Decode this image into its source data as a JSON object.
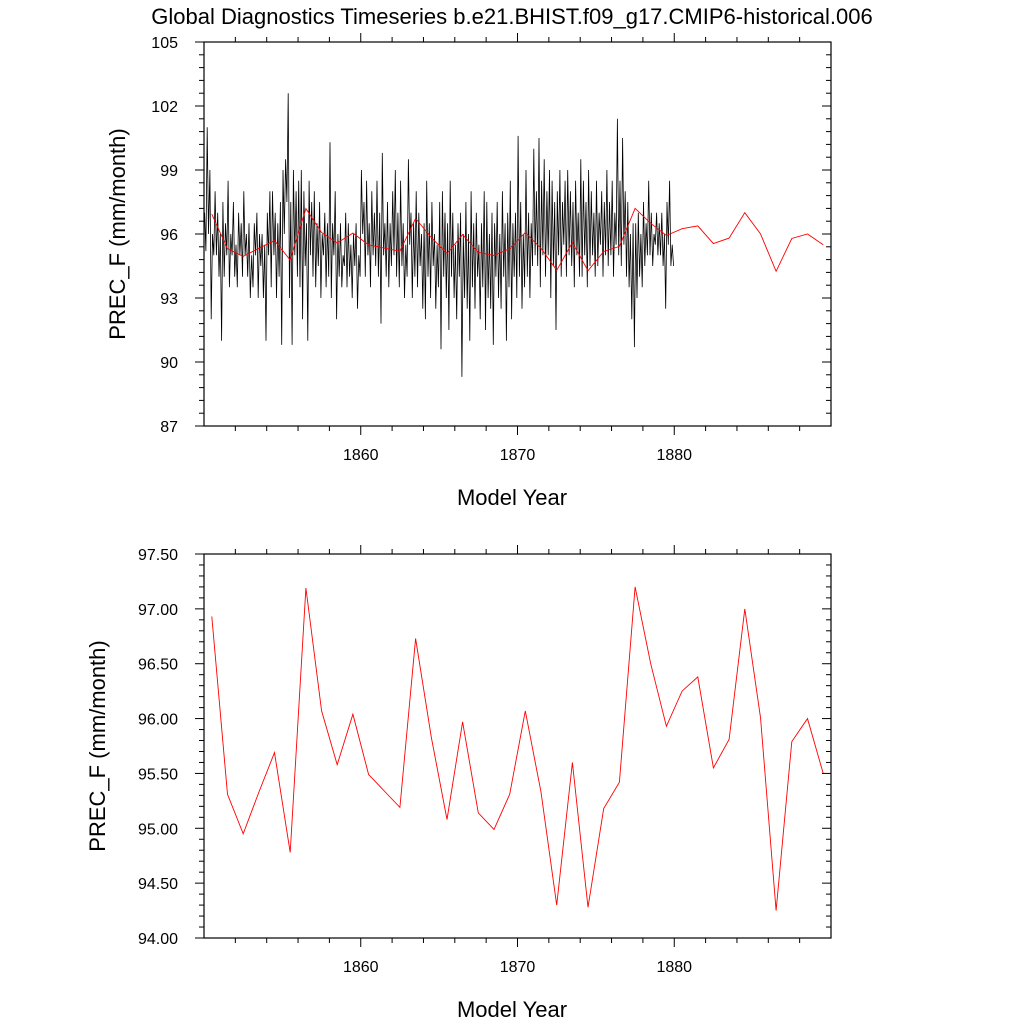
{
  "title": "Global Diagnostics Timeseries b.e21.BHIST.f09_g17.CMIP6-historical.006",
  "colors": {
    "monthly_line": "#000000",
    "annual_line": "#ff0000",
    "frame": "#000000"
  },
  "chart_data": [
    {
      "type": "line",
      "title": "Global Diagnostics Timeseries b.e21.BHIST.f09_g17.CMIP6-historical.006",
      "xlabel": "Model Year",
      "ylabel": "PREC_F (mm/month)",
      "xlim": [
        1850,
        1890
      ],
      "ylim": [
        87,
        105
      ],
      "x_ticks": [
        1860,
        1870,
        1880
      ],
      "x_tick_labels": [
        "1860",
        "1870",
        "1880"
      ],
      "y_ticks": [
        87,
        90,
        93,
        96,
        99,
        102,
        105
      ],
      "y_tick_labels": [
        "87",
        "90",
        "93",
        "96",
        "99",
        "102",
        "105"
      ],
      "series": [
        {
          "name": "monthly",
          "color": "#000000",
          "x_start": 1850.04,
          "x_step": 0.08333,
          "values": [
            97.0,
            95.2,
            101.0,
            96.0,
            99.0,
            92.0,
            96.0,
            95.0,
            98.0,
            95.0,
            97.0,
            94.0,
            96.0,
            91.0,
            97.5,
            94.0,
            96.5,
            95.0,
            98.5,
            93.5,
            96.0,
            95.0,
            97.5,
            94.0,
            95.5,
            93.5,
            97.0,
            95.0,
            96.5,
            94.0,
            98.0,
            95.0,
            96.0,
            94.0,
            96.5,
            93.0,
            95.0,
            93.5,
            96.5,
            95.0,
            97.0,
            93.0,
            96.0,
            94.5,
            96.0,
            93.0,
            95.5,
            91.0,
            97.0,
            95.0,
            98.0,
            93.5,
            98.0,
            95.0,
            97.0,
            93.0,
            96.5,
            94.0,
            97.5,
            90.8,
            99.0,
            96.0,
            99.5,
            97.5,
            102.6,
            93.0,
            97.5,
            90.8,
            99.0,
            95.0,
            98.0,
            94.0,
            98.5,
            93.5,
            99.0,
            92.0,
            98.0,
            94.5,
            96.5,
            91.0,
            98.5,
            95.0,
            97.5,
            94.0,
            98.0,
            93.5,
            96.5,
            94.5,
            97.5,
            93.0,
            96.0,
            95.0,
            97.0,
            93.5,
            96.5,
            94.0,
            100.3,
            93.0,
            96.5,
            95.0,
            98.0,
            92.0,
            96.0,
            94.0,
            96.5,
            93.5,
            95.0,
            94.5,
            97.0,
            93.5,
            96.5,
            94.0,
            95.5,
            93.0,
            96.0,
            94.5,
            96.5,
            92.5,
            95.0,
            94.0,
            99.0,
            96.0,
            97.5,
            94.0,
            98.5,
            95.0,
            96.5,
            93.5,
            98.0,
            95.0,
            97.0,
            94.5,
            98.5,
            94.0,
            97.0,
            91.8,
            99.8,
            95.0,
            96.5,
            94.0,
            97.5,
            93.5,
            96.5,
            94.5,
            98.0,
            95.0,
            99.0,
            94.0,
            97.0,
            93.5,
            98.5,
            94.5,
            96.5,
            93.0,
            95.5,
            94.0,
            99.5,
            95.5,
            97.0,
            93.0,
            96.5,
            94.0,
            98.0,
            93.5,
            97.0,
            94.5,
            96.0,
            92.5,
            96.5,
            92.0,
            98.5,
            94.0,
            96.5,
            93.0,
            97.5,
            94.5,
            96.0,
            92.5,
            95.5,
            93.5,
            97.5,
            90.6,
            98.0,
            94.0,
            97.0,
            93.0,
            96.5,
            91.5,
            98.5,
            94.0,
            97.0,
            93.0,
            95.5,
            92.0,
            96.5,
            94.0,
            97.0,
            89.3,
            96.0,
            93.0,
            97.5,
            92.5,
            96.0,
            91.0,
            98.0,
            93.5,
            96.5,
            92.5,
            97.0,
            94.0,
            95.5,
            92.0,
            96.5,
            93.5,
            98.0,
            91.5,
            97.5,
            93.0,
            96.0,
            92.5,
            97.0,
            90.8,
            96.5,
            94.0,
            97.5,
            93.0,
            96.0,
            92.5,
            98.0,
            94.0,
            96.5,
            91.0,
            97.0,
            93.5,
            98.5,
            92.0,
            96.5,
            94.0,
            97.0,
            93.0,
            100.6,
            94.0,
            97.5,
            92.5,
            96.0,
            93.5,
            99.0,
            94.0,
            97.0,
            93.0,
            96.5,
            94.5,
            100.0,
            95.0,
            98.0,
            94.5,
            100.5,
            93.5,
            98.5,
            95.0,
            99.5,
            94.0,
            98.0,
            95.0,
            99.0,
            93.0,
            98.5,
            94.5,
            97.5,
            91.5,
            98.0,
            95.0,
            99.0,
            94.0,
            97.5,
            95.5,
            98.5,
            94.0,
            99.0,
            95.0,
            98.0,
            94.5,
            97.5,
            93.5,
            98.5,
            95.0,
            97.0,
            94.0,
            99.5,
            94.0,
            98.5,
            95.0,
            97.5,
            93.5,
            99.0,
            94.5,
            98.0,
            95.0,
            97.0,
            94.0,
            98.5,
            94.5,
            97.0,
            95.5,
            98.0,
            94.0,
            97.5,
            95.0,
            99.0,
            94.5,
            97.5,
            95.0,
            98.5,
            94.0,
            97.0,
            95.5,
            101.4,
            95.0,
            98.5,
            94.5,
            100.5,
            95.5,
            98.0,
            94.0,
            97.5,
            93.5,
            96.0,
            92.0,
            96.5,
            90.7,
            96.5,
            93.0,
            97.0,
            94.0,
            96.0,
            93.5,
            97.5,
            94.5,
            96.5,
            95.0,
            98.5,
            95.0,
            97.0,
            94.5,
            96.0,
            95.5,
            97.0,
            95.0,
            96.5,
            95.0,
            97.0,
            94.5,
            96.0,
            92.5,
            97.5,
            95.5,
            98.5,
            94.5,
            95.5,
            94.5
          ]
        },
        {
          "name": "annual",
          "color": "#ff0000",
          "x": [
            1850.5,
            1851.5,
            1852.5,
            1853.5,
            1854.5,
            1855.5,
            1856.5,
            1857.5,
            1858.5,
            1859.5,
            1860.5,
            1861.5,
            1862.5,
            1863.5,
            1864.5,
            1865.5,
            1866.5,
            1867.5,
            1868.5,
            1869.5,
            1870.5,
            1871.5,
            1872.5,
            1873.5,
            1874.5,
            1875.5,
            1876.5,
            1877.5,
            1878.5,
            1879.5,
            1880.5,
            1881.5,
            1882.5,
            1883.5,
            1884.5,
            1885.5,
            1886.5,
            1887.5,
            1888.5,
            1889.5
          ],
          "values": [
            96.93,
            95.31,
            94.95,
            95.33,
            95.69,
            94.78,
            97.19,
            96.07,
            95.58,
            96.04,
            95.49,
            95.34,
            95.19,
            96.73,
            95.83,
            95.08,
            95.97,
            95.14,
            94.99,
            95.31,
            96.07,
            95.33,
            94.3,
            95.6,
            94.28,
            95.18,
            95.42,
            97.2,
            96.5,
            95.93,
            96.25,
            96.38,
            95.55,
            95.81,
            97.0,
            96.01,
            94.25,
            95.79,
            96.0,
            95.5
          ]
        }
      ]
    },
    {
      "type": "line",
      "title": "",
      "xlabel": "Model Year",
      "ylabel": "PREC_F (mm/month)",
      "xlim": [
        1850,
        1890
      ],
      "ylim": [
        94.0,
        97.5
      ],
      "x_ticks": [
        1860,
        1870,
        1880
      ],
      "x_tick_labels": [
        "1860",
        "1870",
        "1880"
      ],
      "y_ticks": [
        94.0,
        94.5,
        95.0,
        95.5,
        96.0,
        96.5,
        97.0,
        97.5
      ],
      "y_tick_labels": [
        "94.00",
        "94.50",
        "95.00",
        "95.50",
        "96.00",
        "96.50",
        "97.00",
        "97.50"
      ],
      "series": [
        {
          "name": "annual",
          "color": "#ff0000",
          "x": [
            1850.5,
            1851.5,
            1852.5,
            1853.5,
            1854.5,
            1855.5,
            1856.5,
            1857.5,
            1858.5,
            1859.5,
            1860.5,
            1861.5,
            1862.5,
            1863.5,
            1864.5,
            1865.5,
            1866.5,
            1867.5,
            1868.5,
            1869.5,
            1870.5,
            1871.5,
            1872.5,
            1873.5,
            1874.5,
            1875.5,
            1876.5,
            1877.5,
            1878.5,
            1879.5,
            1880.5,
            1881.5,
            1882.5,
            1883.5,
            1884.5,
            1885.5,
            1886.5,
            1887.5,
            1888.5,
            1889.5
          ],
          "values": [
            96.93,
            95.31,
            94.95,
            95.33,
            95.69,
            94.78,
            97.19,
            96.07,
            95.58,
            96.04,
            95.49,
            95.34,
            95.19,
            96.73,
            95.83,
            95.08,
            95.97,
            95.14,
            94.99,
            95.31,
            96.07,
            95.33,
            94.3,
            95.6,
            94.28,
            95.18,
            95.42,
            97.2,
            96.5,
            95.93,
            96.25,
            96.38,
            95.55,
            95.81,
            97.0,
            96.01,
            94.25,
            95.79,
            96.0,
            95.5
          ]
        }
      ]
    }
  ]
}
